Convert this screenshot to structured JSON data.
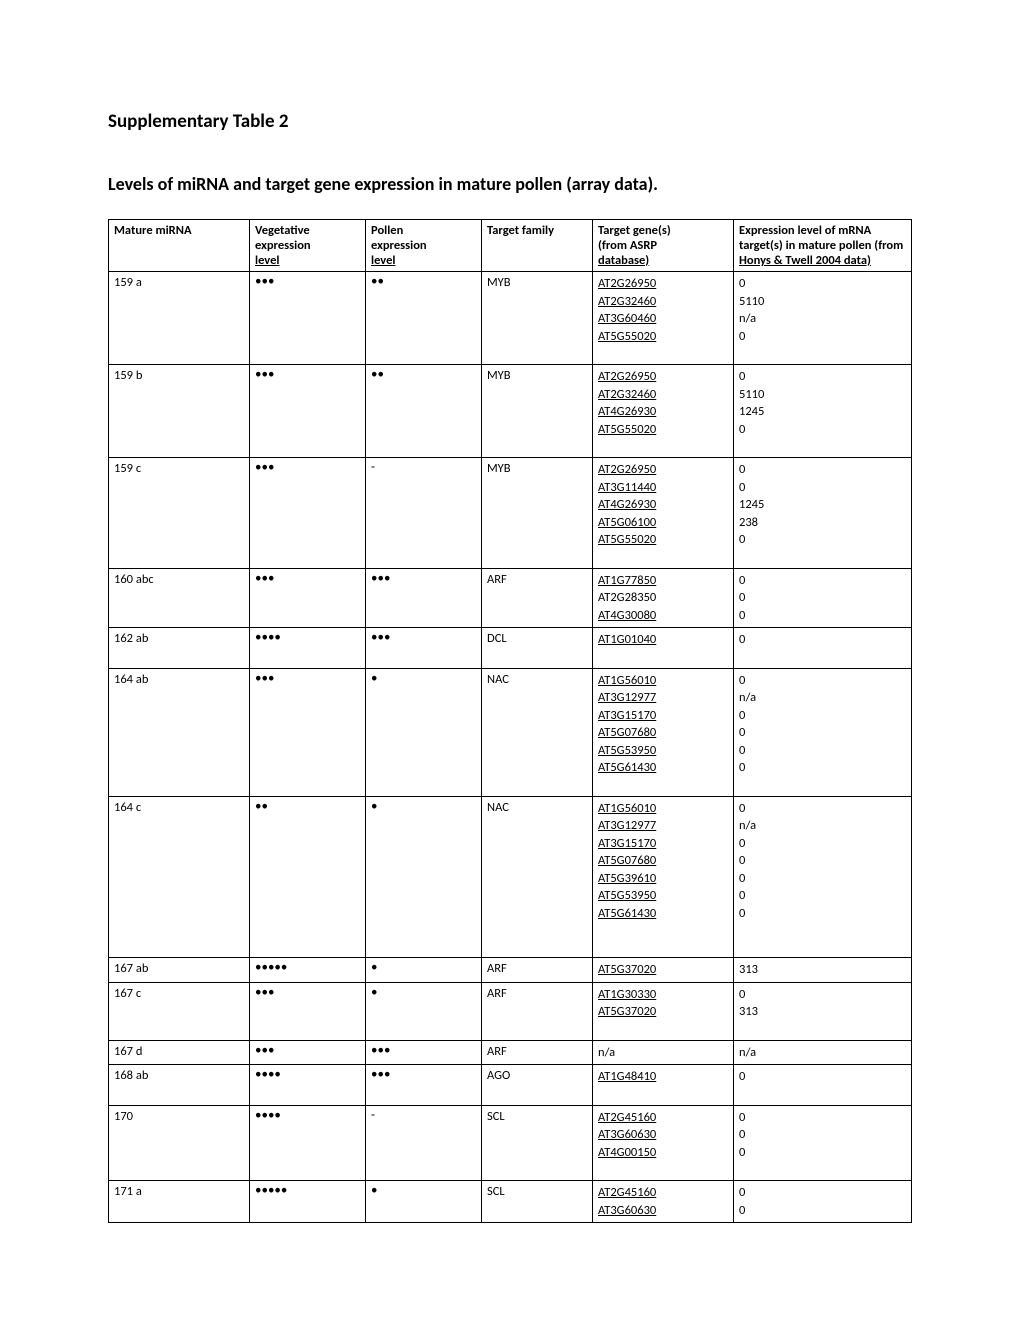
{
  "title": "Supplementary Table 2",
  "subtitle": "Levels of miRNA and target gene expression in mature pollen (array data).",
  "headers": {
    "mirna": "Mature miRNA",
    "veg1": "Vegetative",
    "veg2": "expression",
    "veg3": "level",
    "pol1": "Pollen",
    "pol2": "expression",
    "pol3": "level",
    "family": "Target family",
    "genes1": "Target gene(s)",
    "genes2": "(from ASRP",
    "genes3": "database)",
    "expr1": "Expression level of mRNA",
    "expr2": "target(s) in mature pollen (from",
    "expr3": "Honys & Twell 2004 data)"
  },
  "dot_char": "•",
  "rows": [
    {
      "mirna": "159 a",
      "veg": 3,
      "pollen": 2,
      "family": "MYB",
      "genes": [
        {
          "id": "AT2G26950",
          "link": true,
          "expr": "0"
        },
        {
          "id": "AT2G32460",
          "link": true,
          "expr": "5110"
        },
        {
          "id": "AT3G60460",
          "link": true,
          "expr": "n/a"
        },
        {
          "id": "AT5G55020",
          "link": true,
          "expr": "0"
        }
      ],
      "trail": true
    },
    {
      "mirna": "159 b",
      "veg": 3,
      "pollen": 2,
      "family": "MYB",
      "genes": [
        {
          "id": "AT2G26950",
          "link": true,
          "expr": "0"
        },
        {
          "id": "AT2G32460",
          "link": true,
          "expr": "5110"
        },
        {
          "id": "AT4G26930",
          "link": true,
          "expr": "1245"
        },
        {
          "id": "AT5G55020",
          "link": true,
          "expr": "0"
        }
      ],
      "trail": true
    },
    {
      "mirna": "159 c",
      "veg": 3,
      "pollen": "-",
      "family": "MYB",
      "genes": [
        {
          "id": "AT2G26950",
          "link": true,
          "expr": "0"
        },
        {
          "id": "AT3G11440",
          "link": true,
          "expr": "0"
        },
        {
          "id": "AT4G26930",
          "link": true,
          "expr": "1245"
        },
        {
          "id": "AT5G06100",
          "link": true,
          "expr": "238"
        },
        {
          "id": "AT5G55020",
          "link": true,
          "expr": "0"
        }
      ],
      "trail": true
    },
    {
      "mirna": "160 abc",
      "veg": 3,
      "pollen": 3,
      "family": "ARF",
      "genes": [
        {
          "id": "AT1G77850",
          "link": true,
          "expr": "0"
        },
        {
          "id": "AT2G28350",
          "link": false,
          "expr": "0"
        },
        {
          "id": "AT4G30080",
          "link": true,
          "expr": "0"
        }
      ],
      "trail": false
    },
    {
      "mirna": "162 ab",
      "veg": 4,
      "pollen": 3,
      "family": "DCL",
      "genes": [
        {
          "id": "AT1G01040",
          "link": true,
          "expr": "0"
        }
      ],
      "trail": true
    },
    {
      "mirna": "164 ab",
      "veg": 3,
      "pollen": 1,
      "family": "NAC",
      "genes": [
        {
          "id": "AT1G56010",
          "link": true,
          "expr": "0"
        },
        {
          "id": "AT3G12977",
          "link": true,
          "expr": "n/a"
        },
        {
          "id": "AT3G15170",
          "link": true,
          "expr": "0"
        },
        {
          "id": "AT5G07680",
          "link": true,
          "expr": "0"
        },
        {
          "id": "AT5G53950",
          "link": true,
          "expr": "0"
        },
        {
          "id": "AT5G61430",
          "link": true,
          "expr": "0"
        }
      ],
      "trail": true
    },
    {
      "mirna": "164 c",
      "veg": 2,
      "pollen": 1,
      "family": "NAC",
      "genes": [
        {
          "id": "AT1G56010",
          "link": true,
          "expr": "0"
        },
        {
          "id": "AT3G12977",
          "link": true,
          "expr": "n/a"
        },
        {
          "id": "AT3G15170",
          "link": true,
          "expr": "0"
        },
        {
          "id": "AT5G07680",
          "link": true,
          "expr": "0"
        },
        {
          "id": "AT5G39610",
          "link": true,
          "expr": "0"
        },
        {
          "id": "AT5G53950",
          "link": true,
          "expr": "0"
        },
        {
          "id": "AT5G61430",
          "link": true,
          "expr": "0"
        }
      ],
      "trail": true,
      "extra_trail": true
    },
    {
      "mirna": "167 ab",
      "veg": 5,
      "pollen": 1,
      "family": "ARF",
      "genes": [
        {
          "id": "AT5G37020",
          "link": true,
          "expr": "313"
        }
      ],
      "trail": false
    },
    {
      "mirna": "167 c",
      "veg": 3,
      "pollen": 1,
      "family": "ARF",
      "genes": [
        {
          "id": "AT1G30330",
          "link": true,
          "expr": "0"
        },
        {
          "id": "AT5G37020",
          "link": true,
          "expr": "313"
        }
      ],
      "trail": true
    },
    {
      "mirna": "167 d",
      "veg": 3,
      "pollen": 3,
      "family": "ARF",
      "genes": [
        {
          "id": "n/a",
          "link": false,
          "expr": "n/a"
        }
      ],
      "trail": false
    },
    {
      "mirna": "168 ab",
      "veg": 4,
      "pollen": 3,
      "family": "AGO",
      "genes": [
        {
          "id": "AT1G48410",
          "link": true,
          "expr": "0"
        }
      ],
      "trail": true
    },
    {
      "mirna": "170",
      "veg": 4,
      "pollen": "-",
      "family": "SCL",
      "genes": [
        {
          "id": "AT2G45160",
          "link": true,
          "expr": "0"
        },
        {
          "id": "AT3G60630",
          "link": true,
          "expr": "0"
        },
        {
          "id": "AT4G00150",
          "link": true,
          "expr": "0"
        }
      ],
      "trail": true
    },
    {
      "mirna": "171 a",
      "veg": 5,
      "pollen": 1,
      "family": "SCL",
      "genes": [
        {
          "id": "AT2G45160",
          "link": true,
          "expr": "0"
        },
        {
          "id": "AT3G60630",
          "link": true,
          "expr": "0"
        }
      ],
      "trail": false
    }
  ]
}
